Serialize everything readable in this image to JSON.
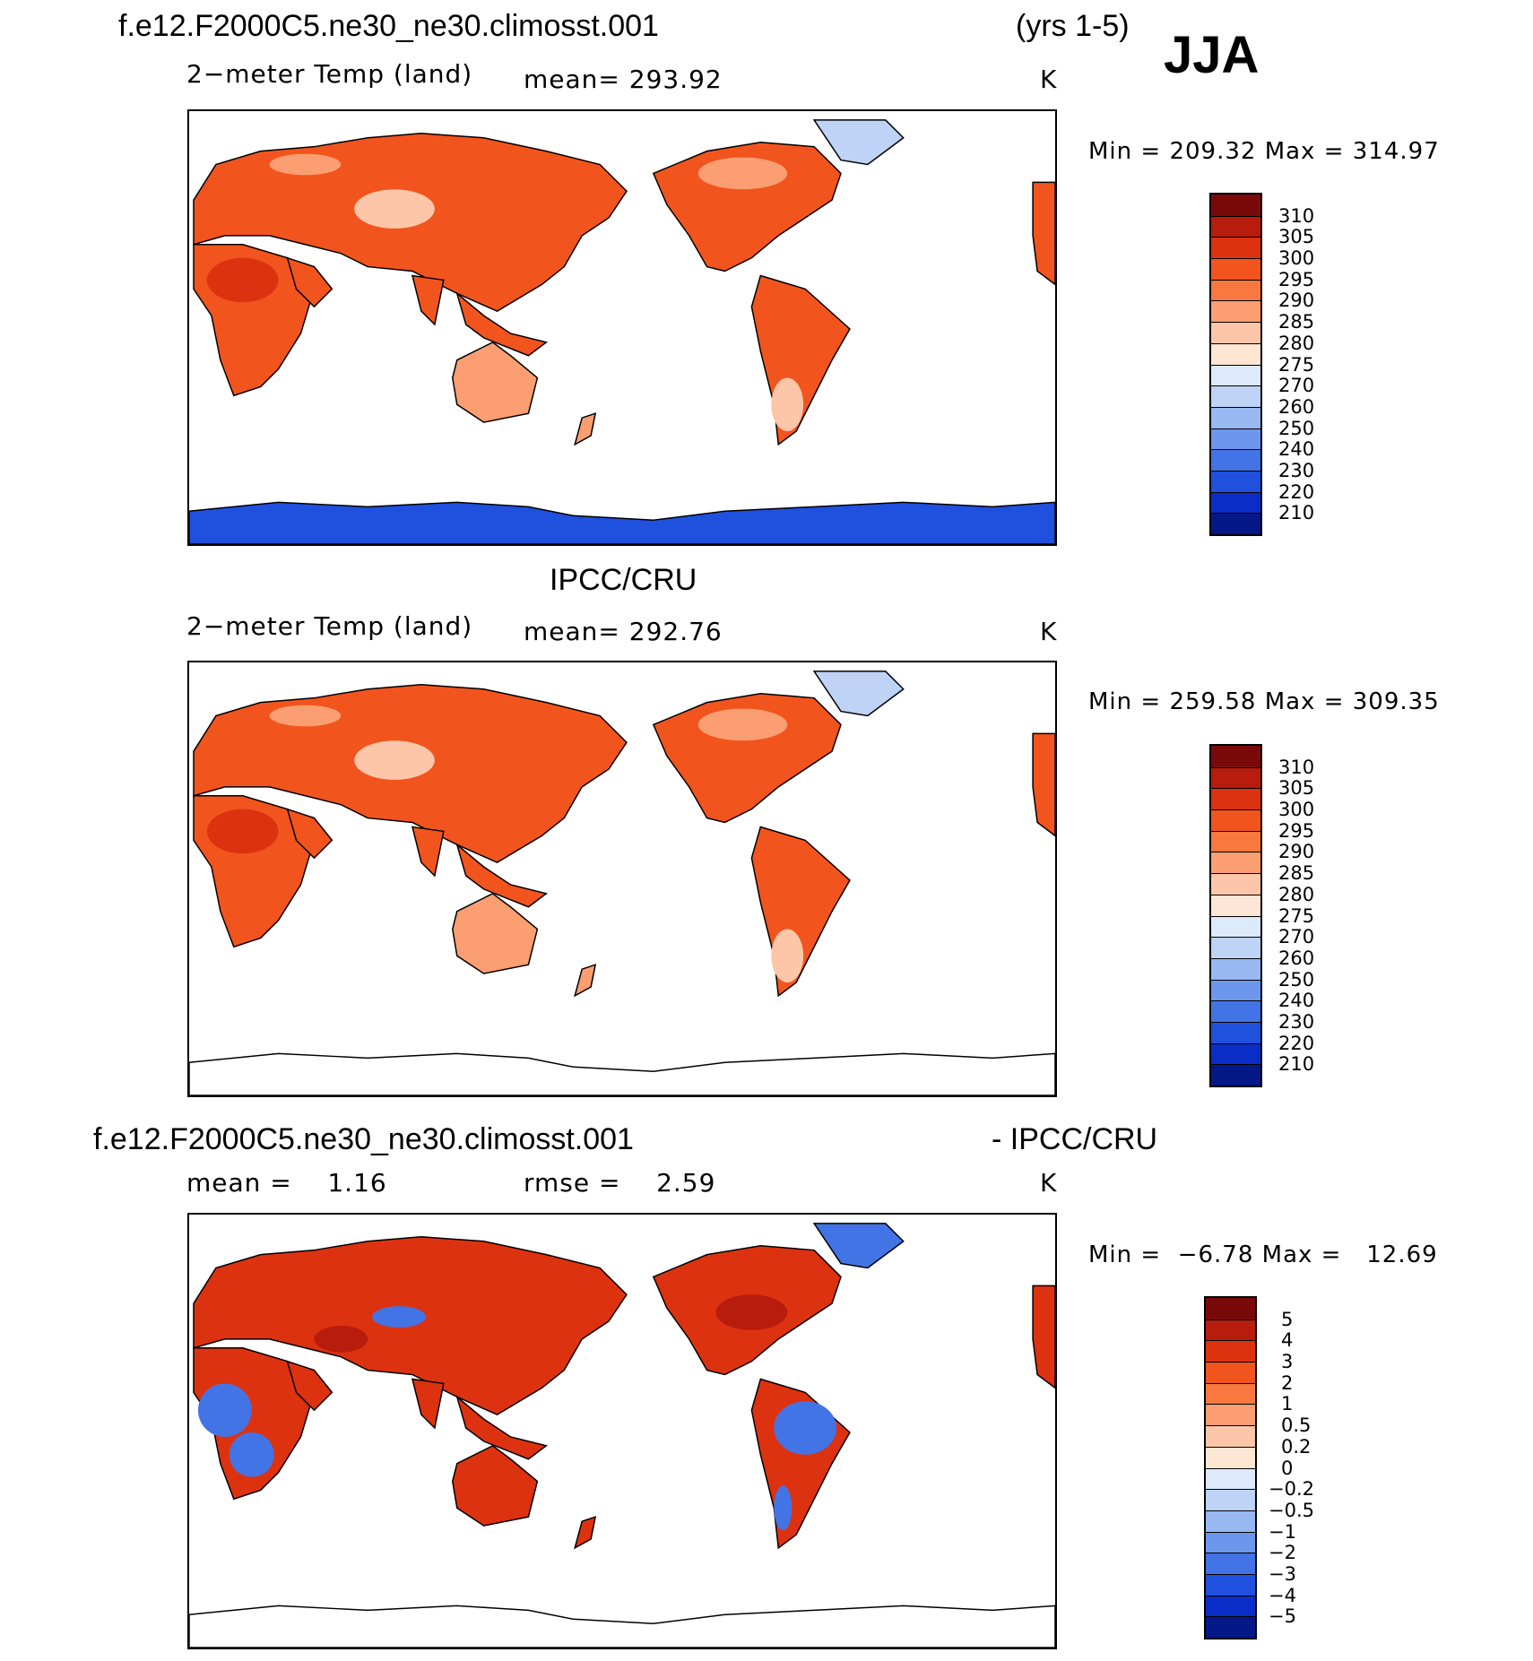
{
  "figure": {
    "case_name": "f.e12.F2000C5.ne30_ne30.climosst.001",
    "years": "(yrs 1-5)",
    "season": "JJA"
  },
  "panels": [
    {
      "id": "model",
      "title": "f.e12.F2000C5.ne30_ne30.climosst.001",
      "variable": "2−meter Temp (land)",
      "mean_text": "mean= 293.92",
      "units": "K",
      "minmax_text": "Min = 209.32 Max = 314.97",
      "map_fill": "model"
    },
    {
      "id": "obs",
      "title": "IPCC/CRU",
      "variable": "2−meter Temp (land)",
      "mean_text": "mean= 292.76",
      "units": "K",
      "minmax_text": "Min = 259.58 Max = 309.35",
      "map_fill": "obs"
    },
    {
      "id": "diff",
      "title_left": "f.e12.F2000C5.ne30_ne30.climosst.001",
      "title_right": "- IPCC/CRU",
      "mean_text": "mean =    1.16",
      "rmse_text": "rmse =    2.59",
      "units": "K",
      "minmax_text": "Min =  −6.78 Max =   12.69",
      "map_fill": "diff"
    }
  ],
  "colorbars": {
    "temperature": {
      "labels": [
        "310",
        "305",
        "300",
        "295",
        "290",
        "285",
        "280",
        "275",
        "270",
        "260",
        "250",
        "240",
        "230",
        "220",
        "210"
      ],
      "colors": [
        "#7a0a0a",
        "#b81c0c",
        "#dd3210",
        "#f2541e",
        "#f87840",
        "#fb9e72",
        "#fdc6a8",
        "#fde6d4",
        "#dceafb",
        "#bed3f6",
        "#98b8f2",
        "#6d97ec",
        "#4374e6",
        "#1f50de",
        "#0a2dc8",
        "#041888"
      ]
    },
    "difference": {
      "labels": [
        "5",
        "4",
        "3",
        "2",
        "1",
        "0.5",
        "0.2",
        "0",
        "−0.2",
        "−0.5",
        "−1",
        "−2",
        "−3",
        "−4",
        "−5"
      ],
      "colors": [
        "#7a0a0a",
        "#b81c0c",
        "#dd3210",
        "#f2541e",
        "#f87840",
        "#fb9e72",
        "#fdc6a8",
        "#fde6d4",
        "#dceafb",
        "#bed3f6",
        "#98b8f2",
        "#6d97ec",
        "#4374e6",
        "#1f50de",
        "#0a2dc8",
        "#041888"
      ]
    }
  },
  "map_colors": {
    "land_warm": "#f2541e",
    "land_hot": "#dd3210",
    "land_mild": "#fb9e72",
    "land_cool": "#fdc6a8",
    "ice_cold": "#1f50de",
    "ice_light": "#bed3f6",
    "diff_pos": "#dd3210",
    "diff_strong": "#b81c0c",
    "diff_neg": "#4374e6"
  }
}
